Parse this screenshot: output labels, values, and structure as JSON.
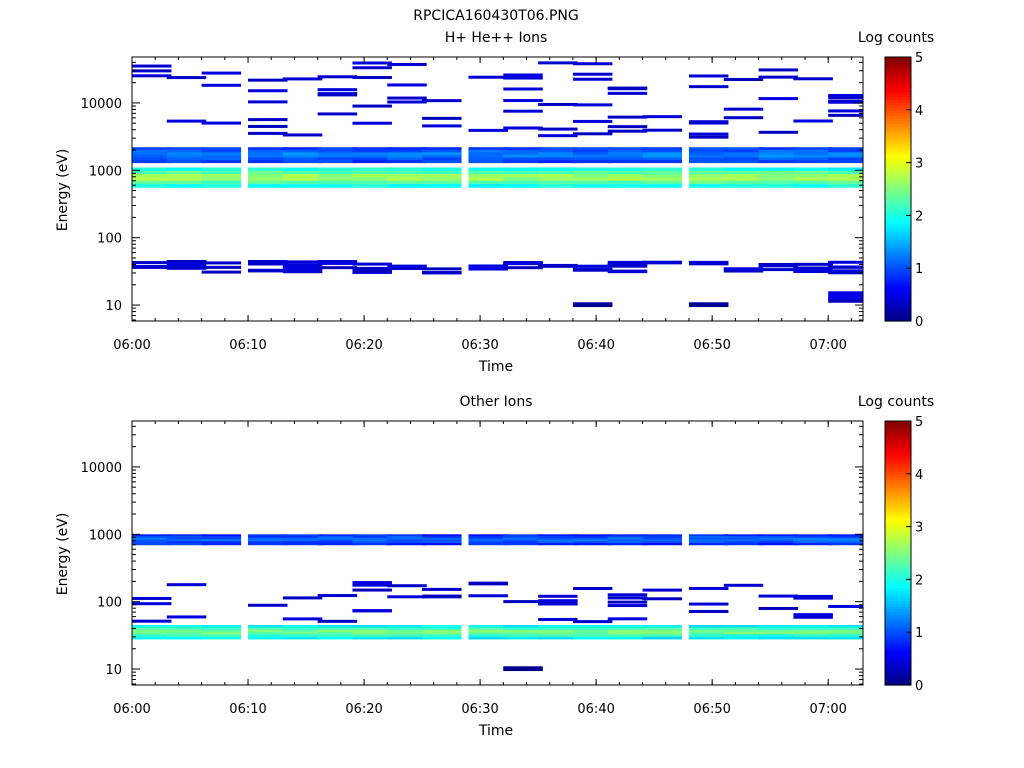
{
  "figure_title": "RPCICA160430T06.PNG",
  "chart_data": [
    {
      "type": "heatmap",
      "title": "H+ He++ Ions",
      "xlabel": "Time",
      "ylabel": "Energy (eV)",
      "x_range": [
        "06:00",
        "07:03"
      ],
      "y_range": [
        5.8,
        48000
      ],
      "y_scale": "log",
      "x_ticks": [
        "06:00",
        "06:10",
        "06:20",
        "06:30",
        "06:40",
        "06:50",
        "07:00"
      ],
      "y_ticks": [
        "10",
        "100",
        "1000",
        "10000"
      ],
      "colorbar": {
        "label": "Log counts",
        "min": 0,
        "max": 5,
        "ticks": [
          "0",
          "1",
          "2",
          "3",
          "4",
          "5"
        ]
      },
      "time_bins": [
        "06:00",
        "06:03",
        "06:06",
        "06:10",
        "06:13",
        "06:16",
        "06:19",
        "06:22",
        "06:25",
        "06:29",
        "06:32",
        "06:35",
        "06:38",
        "06:41",
        "06:44",
        "06:48",
        "06:51",
        "06:54",
        "06:57",
        "07:00"
      ],
      "features": [
        {
          "energy_eV": [
            560,
            1100
          ],
          "log_counts": 2.8,
          "bins": "all",
          "note": "strong band peaking near 800 eV"
        },
        {
          "energy_eV": [
            1300,
            2200
          ],
          "log_counts": 1.3,
          "bins": "all"
        },
        {
          "energy_eV": [
            3000,
            40000
          ],
          "log_counts": 0.3,
          "bins": "all",
          "note": "sparse lines"
        },
        {
          "energy_eV": [
            30,
            45
          ],
          "log_counts": 0.3,
          "bins": "all",
          "note": "sparse lines"
        },
        {
          "energy_eV": [
            9.5,
            11
          ],
          "log_counts": 0.1,
          "bins": [
            "06:38",
            "06:48"
          ]
        },
        {
          "energy_eV": [
            11,
            16
          ],
          "log_counts": 0.5,
          "bins": [
            "07:00"
          ]
        }
      ]
    },
    {
      "type": "heatmap",
      "title": "Other Ions",
      "xlabel": "Time",
      "ylabel": "Energy (eV)",
      "x_range": [
        "06:00",
        "07:03"
      ],
      "y_range": [
        5.8,
        48000
      ],
      "y_scale": "log",
      "x_ticks": [
        "06:00",
        "06:10",
        "06:20",
        "06:30",
        "06:40",
        "06:50",
        "07:00"
      ],
      "y_ticks": [
        "10",
        "100",
        "1000",
        "10000"
      ],
      "colorbar": {
        "label": "Log counts",
        "min": 0,
        "max": 5,
        "ticks": [
          "0",
          "1",
          "2",
          "3",
          "4",
          "5"
        ]
      },
      "time_bins": [
        "06:00",
        "06:03",
        "06:06",
        "06:10",
        "06:13",
        "06:16",
        "06:19",
        "06:22",
        "06:25",
        "06:29",
        "06:32",
        "06:35",
        "06:38",
        "06:41",
        "06:44",
        "06:48",
        "06:51",
        "06:54",
        "06:57",
        "07:00"
      ],
      "features": [
        {
          "energy_eV": [
            28,
            45
          ],
          "log_counts": 2.6,
          "bins": "all",
          "note": "strong band near 35 eV"
        },
        {
          "energy_eV": [
            700,
            1000
          ],
          "log_counts": 1.2,
          "bins": "all"
        },
        {
          "energy_eV": [
            50,
            200
          ],
          "log_counts": 0.3,
          "bins": "partial",
          "note": "sparse lines"
        },
        {
          "energy_eV": [
            9.5,
            11
          ],
          "log_counts": 0.1,
          "bins": [
            "06:32"
          ]
        }
      ]
    }
  ]
}
